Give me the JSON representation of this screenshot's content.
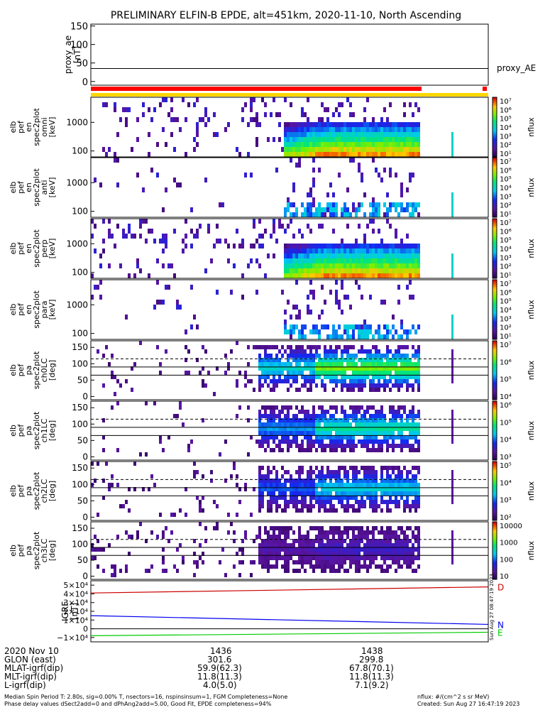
{
  "chart_data": {
    "title": "PRELIMINARY ELFIN-B EPDE, alt=451km, 2020-11-10, North Ascending",
    "proxy_ae": {
      "type": "line",
      "ylabel": "proxy_ae\n[nT]",
      "legend": "proxy_AE",
      "yticks": [
        "150",
        "100",
        "50",
        "0"
      ],
      "ylim": [
        -10,
        155
      ],
      "value": 35
    },
    "panels": [
      {
        "type": "heatmap",
        "ylabel": [
          "elb",
          "pef",
          "en",
          "spec2plot",
          "omni",
          "[keV]"
        ],
        "yticks": [
          "1000",
          "100"
        ],
        "colorbar_label": "nflux",
        "colorbar_ticks": [
          "10⁷",
          "10⁶",
          "10⁵",
          "10⁴",
          "10³",
          "10²",
          "10¹"
        ]
      },
      {
        "type": "heatmap",
        "ylabel": [
          "elb",
          "pef",
          "en",
          "spec2plot",
          "anti",
          "[keV]"
        ],
        "yticks": [
          "1000",
          "100"
        ],
        "colorbar_label": "nflux",
        "colorbar_ticks": [
          "10⁷",
          "10⁶",
          "10⁵",
          "10⁴",
          "10³",
          "10²",
          "10¹"
        ]
      },
      {
        "type": "heatmap",
        "ylabel": [
          "elb",
          "pef",
          "en",
          "spec2plot",
          "perp",
          "[keV]"
        ],
        "yticks": [
          "1000",
          "100"
        ],
        "colorbar_label": "nflux",
        "colorbar_ticks": [
          "10⁷",
          "10⁶",
          "10⁵",
          "10⁴",
          "10³",
          "10²",
          "10¹"
        ]
      },
      {
        "type": "heatmap",
        "ylabel": [
          "elb",
          "pef",
          "en",
          "spec2plot",
          "para",
          "[keV]"
        ],
        "yticks": [
          "1000",
          "100"
        ],
        "colorbar_label": "nflux",
        "colorbar_ticks": [
          "10⁷",
          "10⁶",
          "10⁵",
          "10⁴",
          "10³",
          "10²",
          "10¹"
        ]
      },
      {
        "type": "heatmap",
        "ylabel": [
          "elb",
          "pef",
          "pa",
          "spec2plot",
          "ch0LC",
          "[deg]"
        ],
        "yticks": [
          "150",
          "100",
          "50",
          "0"
        ],
        "colorbar_label": "nflux",
        "colorbar_ticks": [
          "10⁷",
          "10⁶",
          "10⁵",
          "10⁴"
        ]
      },
      {
        "type": "heatmap",
        "ylabel": [
          "elb",
          "pef",
          "pa",
          "spec2plot",
          "ch1LC",
          "[deg]"
        ],
        "yticks": [
          "150",
          "100",
          "50",
          "0"
        ],
        "colorbar_label": "nflux",
        "colorbar_ticks": [
          "10⁶",
          "10⁵",
          "10⁴",
          "10³"
        ]
      },
      {
        "type": "heatmap",
        "ylabel": [
          "elb",
          "pef",
          "pa",
          "spec2plot",
          "ch2LC",
          "[deg]"
        ],
        "yticks": [
          "150",
          "100",
          "50",
          "0"
        ],
        "colorbar_label": "nflux",
        "colorbar_ticks": [
          "10⁵",
          "10⁴",
          "10³",
          "10²"
        ]
      },
      {
        "type": "heatmap",
        "ylabel": [
          "elb",
          "pef",
          "pa",
          "spec2plot",
          "ch3LC",
          "[deg]"
        ],
        "yticks": [
          "150",
          "100",
          "50",
          "0"
        ],
        "colorbar_label": "nflux",
        "colorbar_ticks": [
          "10000",
          "1000",
          "100",
          "10"
        ]
      }
    ],
    "igrf": {
      "type": "line",
      "ylabel": "IGRF\n[nT]",
      "yticks": [
        "5×10⁴",
        "4×10⁴",
        "3×10⁴",
        "2×10⁴",
        "1×10⁴",
        "0",
        "−1×10⁴"
      ],
      "ylim": [
        -15000,
        55000
      ],
      "series": [
        {
          "name": "D",
          "color": "#cc0000",
          "values": [
            41000,
            48000
          ]
        },
        {
          "name": "N",
          "color": "#0000ee",
          "values": [
            15000,
            5000
          ]
        },
        {
          "name": "E",
          "color": "#00cc00",
          "values": [
            -8000,
            -4000
          ]
        }
      ]
    },
    "colors": {
      "quality_red": "#ff0000",
      "quality_yellow": "#ffd700"
    },
    "side_stamp": "Sun Aug 27 08:47:19 2023",
    "xaxis": {
      "rows": [
        [
          "2020 Nov 10",
          "1436",
          "1438"
        ],
        [
          "GLON (east)",
          "301.6",
          "299.8"
        ],
        [
          "MLAT-igrf(dip)",
          "59.9(62.3)",
          "67.8(70.1)"
        ],
        [
          "MLT-igrf(dip)",
          "11.8(11.3)",
          "11.8(11.3)"
        ],
        [
          "L-igrf(dip)",
          "4.0(5.0)",
          "7.1(9.2)"
        ]
      ]
    }
  },
  "footer": {
    "left_1": "Median Spin Period T: 2.80s, sig=0.00% T, nsectors=16, nspinsinsum=1, FGM Completeness=None",
    "left_2": "Phase delay values dSect2add=0 and dPhAng2add=5.00, Good Fit, EPDE completeness=94%",
    "right_1": "nflux: #/(cm^2 s sr MeV)",
    "right_2": "Created: Sun Aug 27 16:47:19 2023"
  }
}
